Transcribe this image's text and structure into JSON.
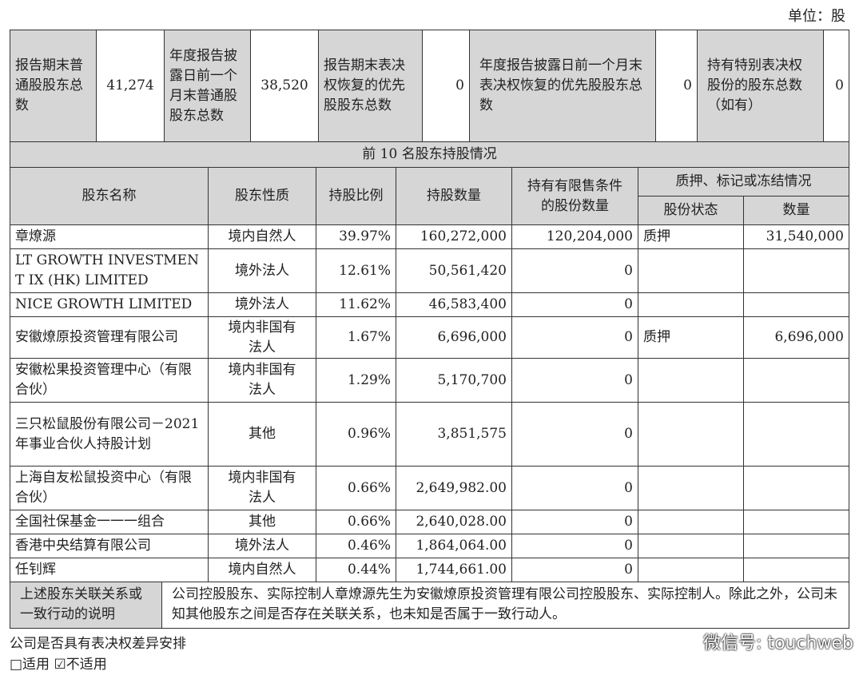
{
  "unit": "单位：股",
  "summary": {
    "total_common_label": "报告期末普通股股东总数",
    "total_common_value": "41,274",
    "prev_month_common_label": "年度报告披露日前一个月末普通股股东总数",
    "prev_month_common_value": "38,520",
    "pref_restored_label": "报告期末表决权恢复的优先股股东总数",
    "pref_restored_value": "0",
    "prev_month_pref_label": "年度报告披露日前一个月末表决权恢复的优先股股东总数",
    "prev_month_pref_value": "0",
    "special_voting_label": "持有特别表决权股份的股东总数（如有）",
    "special_voting_value": "0"
  },
  "section_title": "前 10 名股东持股情况",
  "headers": {
    "name": "股东名称",
    "nature": "股东性质",
    "ratio": "持股比例",
    "quantity": "持股数量",
    "restricted": "持有有限售条件的股份数量",
    "pledge_group": "质押、标记或冻结情况",
    "status": "股份状态",
    "amount": "数量"
  },
  "rows": [
    {
      "name": "章燎源",
      "nature": "境内自然人",
      "ratio": "39.97%",
      "quantity": "160,272,000",
      "restricted": "120,204,000",
      "status": "质押",
      "amount": "31,540,000"
    },
    {
      "name": "LT GROWTH INVESTMENT IX (HK) LIMITED",
      "nature": "境外法人",
      "ratio": "12.61%",
      "quantity": "50,561,420",
      "restricted": "0",
      "status": "",
      "amount": ""
    },
    {
      "name": "NICE GROWTH LIMITED",
      "nature": "境外法人",
      "ratio": "11.62%",
      "quantity": "46,583,400",
      "restricted": "0",
      "status": "",
      "amount": ""
    },
    {
      "name": "安徽燎原投资管理有限公司",
      "nature": "境内非国有法人",
      "ratio": "1.67%",
      "quantity": "6,696,000",
      "restricted": "0",
      "status": "质押",
      "amount": "6,696,000"
    },
    {
      "name": "安徽松果投资管理中心（有限合伙）",
      "nature": "境内非国有法人",
      "ratio": "1.29%",
      "quantity": "5,170,700",
      "restricted": "0",
      "status": "",
      "amount": ""
    },
    {
      "name": "三只松鼠股份有限公司－2021 年事业合伙人持股计划",
      "nature": "其他",
      "ratio": "0.96%",
      "quantity": "3,851,575",
      "restricted": "0",
      "status": "",
      "amount": ""
    },
    {
      "name": "上海自友松鼠投资中心（有限合伙）",
      "nature": "境内非国有法人",
      "ratio": "0.66%",
      "quantity": "2,649,982.00",
      "restricted": "0",
      "status": "",
      "amount": ""
    },
    {
      "name": "全国社保基金一一一组合",
      "nature": "其他",
      "ratio": "0.66%",
      "quantity": "2,640,028.00",
      "restricted": "0",
      "status": "",
      "amount": ""
    },
    {
      "name": "香港中央结算有限公司",
      "nature": "境外法人",
      "ratio": "0.46%",
      "quantity": "1,864,064.00",
      "restricted": "0",
      "status": "",
      "amount": ""
    },
    {
      "name": "任钊辉",
      "nature": "境内自然人",
      "ratio": "0.44%",
      "quantity": "1,744,661.00",
      "restricted": "0",
      "status": "",
      "amount": ""
    }
  ],
  "relation": {
    "label": "上述股东关联关系或一致行动的说明",
    "text": "公司控股股东、实际控制人章燎源先生为安徽燎原投资管理有限公司控股股东、实际控制人。除此之外，公司未知其他股东之间是否存在关联关系，也未知是否属于一致行动人。"
  },
  "voting_diff_label": "公司是否具有表决权差异安排",
  "applicable": "□适用 ☑不适用",
  "watermark": "微信号: touchweb"
}
